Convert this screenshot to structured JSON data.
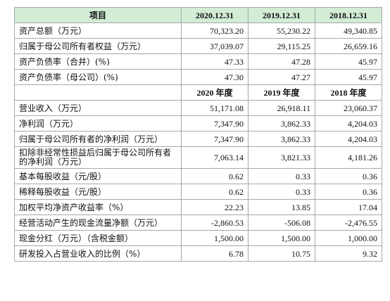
{
  "header": {
    "item": "项目",
    "col1": "2020.12.31",
    "col2": "2019.12.31",
    "col3": "2018.12.31"
  },
  "balance_rows": [
    {
      "label": "资产总额（万元）",
      "v1": "70,323.20",
      "v2": "55,230.22",
      "v3": "49,340.85"
    },
    {
      "label": "归属于母公司所有者权益（万元）",
      "v1": "37,039.07",
      "v2": "29,115.25",
      "v3": "26,659.16"
    },
    {
      "label": "资产负债率（合并）(%)",
      "v1": "47.33",
      "v2": "47.28",
      "v3": "45.97"
    },
    {
      "label": "资产负债率（母公司）(%)",
      "v1": "47.30",
      "v2": "47.27",
      "v3": "45.97"
    }
  ],
  "sub_header": {
    "col1": "2020 年度",
    "col2": "2019 年度",
    "col3": "2018 年度"
  },
  "income_rows": [
    {
      "label": "营业收入（万元）",
      "v1": "51,171.08",
      "v2": "26,918.11",
      "v3": "23,060.37"
    },
    {
      "label": "净利润（万元）",
      "v1": "7,347.90",
      "v2": "3,862.33",
      "v3": "4,204.03"
    },
    {
      "label": "归属于母公司所有者的净利润（万元）",
      "v1": "7,347.90",
      "v2": "3,862.33",
      "v3": "4,204.03"
    },
    {
      "label": "扣除非经常性损益后归属于母公司所有者的净利润（万元）",
      "v1": "7,063.14",
      "v2": "3,821.33",
      "v3": "4,181.26"
    },
    {
      "label": "基本每股收益（元/股）",
      "v1": "0.62",
      "v2": "0.33",
      "v3": "0.36"
    },
    {
      "label": "稀释每股收益（元/股）",
      "v1": "0.62",
      "v2": "0.33",
      "v3": "0.36"
    },
    {
      "label": "加权平均净资产收益率（%）",
      "v1": "22.23",
      "v2": "13.85",
      "v3": "17.04"
    },
    {
      "label": "经营活动产生的现金流量净额（万元）",
      "v1": "-2,860.53",
      "v2": "-506.08",
      "v3": "-2,476.55"
    },
    {
      "label": "现金分红（万元）（含税金额）",
      "v1": "1,500.00",
      "v2": "1,500.00",
      "v3": "1,000.00"
    },
    {
      "label": "研发投入占营业收入的比例（%）",
      "v1": "6.78",
      "v2": "10.75",
      "v3": "9.32"
    }
  ],
  "colors": {
    "header_bg": "#d2ecd5",
    "border": "#a8a8a8"
  }
}
